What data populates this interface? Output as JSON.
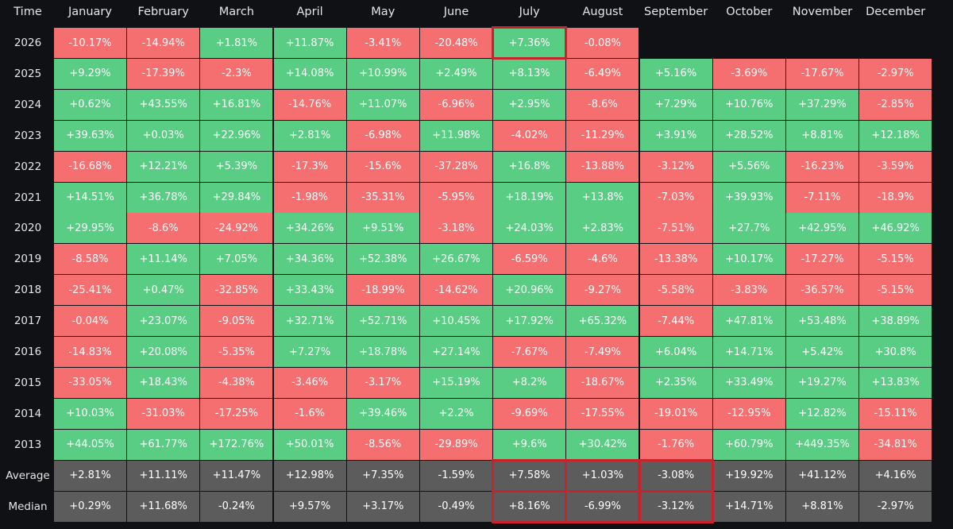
{
  "header": {
    "time_label": "Time",
    "months": [
      "January",
      "February",
      "March",
      "April",
      "May",
      "June",
      "July",
      "August",
      "September",
      "October",
      "November",
      "December"
    ]
  },
  "colors": {
    "positive": "#58cd83",
    "negative": "#f56f70",
    "summary": "#5c5c5c",
    "highlight": "#c8232c",
    "background": "#101114"
  },
  "chart_data": {
    "type": "table",
    "columns": [
      "Time",
      "January",
      "February",
      "March",
      "April",
      "May",
      "June",
      "July",
      "August",
      "September",
      "October",
      "November",
      "December"
    ],
    "rows": [
      {
        "label": "2026",
        "values": [
          "-10.17%",
          "-14.94%",
          "+1.81%",
          "+11.87%",
          "-3.41%",
          "-20.48%",
          "+7.36%",
          "-0.08%",
          "",
          "",
          "",
          ""
        ]
      },
      {
        "label": "2025",
        "values": [
          "+9.29%",
          "-17.39%",
          "-2.3%",
          "+14.08%",
          "+10.99%",
          "+2.49%",
          "+8.13%",
          "-6.49%",
          "+5.16%",
          "-3.69%",
          "-17.67%",
          "-2.97%"
        ]
      },
      {
        "label": "2024",
        "values": [
          "+0.62%",
          "+43.55%",
          "+16.81%",
          "-14.76%",
          "+11.07%",
          "-6.96%",
          "+2.95%",
          "-8.6%",
          "+7.29%",
          "+10.76%",
          "+37.29%",
          "-2.85%"
        ]
      },
      {
        "label": "2023",
        "values": [
          "+39.63%",
          "+0.03%",
          "+22.96%",
          "+2.81%",
          "-6.98%",
          "+11.98%",
          "-4.02%",
          "-11.29%",
          "+3.91%",
          "+28.52%",
          "+8.81%",
          "+12.18%"
        ]
      },
      {
        "label": "2022",
        "values": [
          "-16.68%",
          "+12.21%",
          "+5.39%",
          "-17.3%",
          "-15.6%",
          "-37.28%",
          "+16.8%",
          "-13.88%",
          "-3.12%",
          "+5.56%",
          "-16.23%",
          "-3.59%"
        ]
      },
      {
        "label": "2021",
        "values": [
          "+14.51%",
          "+36.78%",
          "+29.84%",
          "-1.98%",
          "-35.31%",
          "-5.95%",
          "+18.19%",
          "+13.8%",
          "-7.03%",
          "+39.93%",
          "-7.11%",
          "-18.9%"
        ]
      },
      {
        "label": "2020",
        "values": [
          "+29.95%",
          "-8.6%",
          "-24.92%",
          "+34.26%",
          "+9.51%",
          "-3.18%",
          "+24.03%",
          "+2.83%",
          "-7.51%",
          "+27.7%",
          "+42.95%",
          "+46.92%"
        ]
      },
      {
        "label": "2019",
        "values": [
          "-8.58%",
          "+11.14%",
          "+7.05%",
          "+34.36%",
          "+52.38%",
          "+26.67%",
          "-6.59%",
          "-4.6%",
          "-13.38%",
          "+10.17%",
          "-17.27%",
          "-5.15%"
        ]
      },
      {
        "label": "2018",
        "values": [
          "-25.41%",
          "+0.47%",
          "-32.85%",
          "+33.43%",
          "-18.99%",
          "-14.62%",
          "+20.96%",
          "-9.27%",
          "-5.58%",
          "-3.83%",
          "-36.57%",
          "-5.15%"
        ]
      },
      {
        "label": "2017",
        "values": [
          "-0.04%",
          "+23.07%",
          "-9.05%",
          "+32.71%",
          "+52.71%",
          "+10.45%",
          "+17.92%",
          "+65.32%",
          "-7.44%",
          "+47.81%",
          "+53.48%",
          "+38.89%"
        ]
      },
      {
        "label": "2016",
        "values": [
          "-14.83%",
          "+20.08%",
          "-5.35%",
          "+7.27%",
          "+18.78%",
          "+27.14%",
          "-7.67%",
          "-7.49%",
          "+6.04%",
          "+14.71%",
          "+5.42%",
          "+30.8%"
        ]
      },
      {
        "label": "2015",
        "values": [
          "-33.05%",
          "+18.43%",
          "-4.38%",
          "-3.46%",
          "-3.17%",
          "+15.19%",
          "+8.2%",
          "-18.67%",
          "+2.35%",
          "+33.49%",
          "+19.27%",
          "+13.83%"
        ]
      },
      {
        "label": "2014",
        "values": [
          "+10.03%",
          "-31.03%",
          "-17.25%",
          "-1.6%",
          "+39.46%",
          "+2.2%",
          "-9.69%",
          "-17.55%",
          "-19.01%",
          "-12.95%",
          "+12.82%",
          "-15.11%"
        ]
      },
      {
        "label": "2013",
        "values": [
          "+44.05%",
          "+61.77%",
          "+172.76%",
          "+50.01%",
          "-8.56%",
          "-29.89%",
          "+9.6%",
          "+30.42%",
          "-1.76%",
          "+60.79%",
          "+449.35%",
          "-34.81%"
        ]
      }
    ],
    "summary_rows": [
      {
        "label": "Average",
        "values": [
          "+2.81%",
          "+11.11%",
          "+11.47%",
          "+12.98%",
          "+7.35%",
          "-1.59%",
          "+7.58%",
          "+1.03%",
          "-3.08%",
          "+19.92%",
          "+41.12%",
          "+4.16%"
        ]
      },
      {
        "label": "Median",
        "values": [
          "+0.29%",
          "+11.68%",
          "-0.24%",
          "+9.57%",
          "+3.17%",
          "-0.49%",
          "+8.16%",
          "-6.99%",
          "-3.12%",
          "+14.71%",
          "+8.81%",
          "-2.97%"
        ]
      }
    ],
    "highlighted_cells": [
      {
        "row": "2026",
        "month": "July"
      },
      {
        "row": "Average",
        "month": "July"
      },
      {
        "row": "Median",
        "month": "July"
      },
      {
        "row": "Average",
        "month": "August"
      },
      {
        "row": "Median",
        "month": "August"
      },
      {
        "row": "Average",
        "month": "September"
      },
      {
        "row": "Median",
        "month": "September"
      }
    ]
  }
}
